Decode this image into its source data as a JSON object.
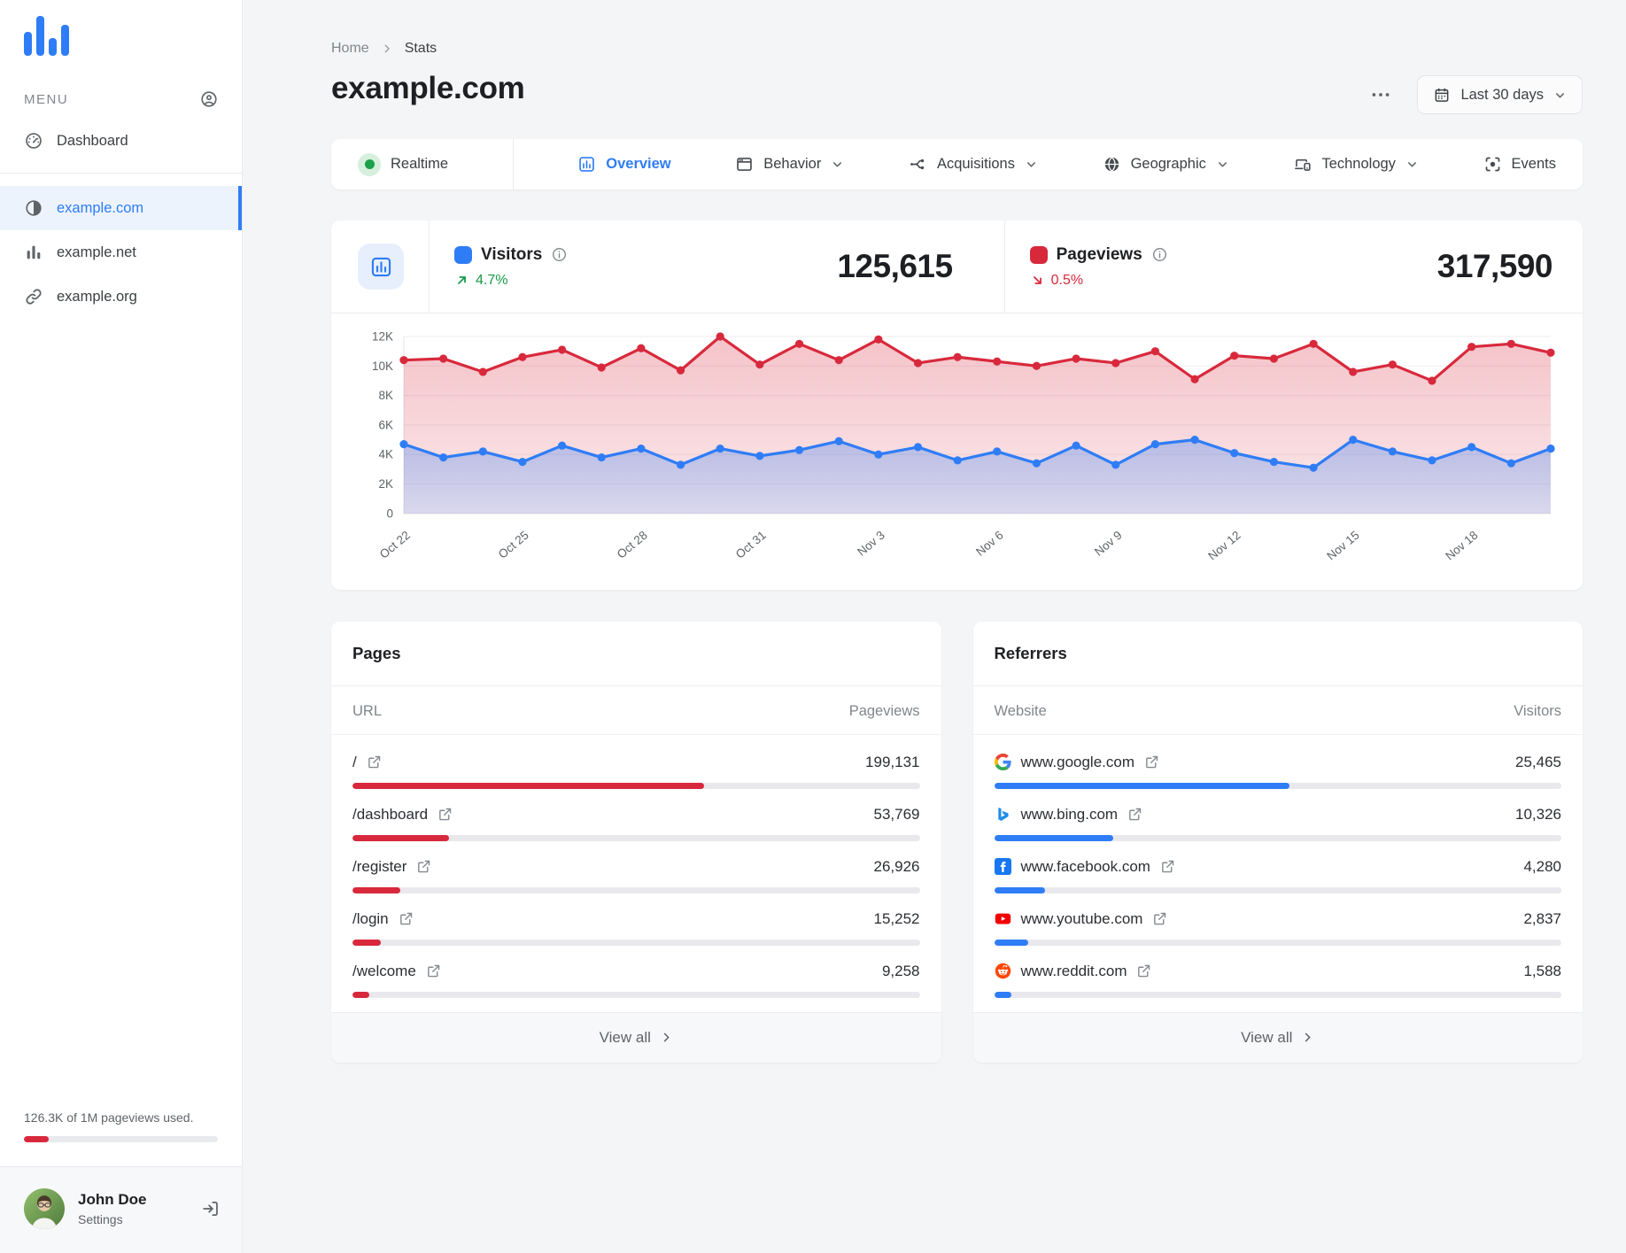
{
  "sidebar": {
    "menu_label": "MENU",
    "dashboard_label": "Dashboard",
    "sites": [
      {
        "label": "example.com",
        "icon": "contrast",
        "active": true
      },
      {
        "label": "example.net",
        "icon": "bar-chart",
        "active": false
      },
      {
        "label": "example.org",
        "icon": "link",
        "active": false
      }
    ],
    "usage": {
      "text": "126.3K of 1M pageviews used.",
      "percent": 12.6
    },
    "user": {
      "name": "John Doe",
      "subtitle": "Settings"
    }
  },
  "header": {
    "breadcrumb": {
      "home": "Home",
      "current": "Stats"
    },
    "title": "example.com",
    "date_range_label": "Last 30 days"
  },
  "tabs": [
    {
      "label": "Realtime",
      "icon": "pulse",
      "active": false,
      "dropdown": false
    },
    {
      "label": "Overview",
      "icon": "overview",
      "active": true,
      "dropdown": false
    },
    {
      "label": "Behavior",
      "icon": "behavior",
      "active": false,
      "dropdown": true
    },
    {
      "label": "Acquisitions",
      "icon": "acquisitions",
      "active": false,
      "dropdown": true
    },
    {
      "label": "Geographic",
      "icon": "geographic",
      "active": false,
      "dropdown": true
    },
    {
      "label": "Technology",
      "icon": "technology",
      "active": false,
      "dropdown": true
    },
    {
      "label": "Events",
      "icon": "events",
      "active": false,
      "dropdown": false
    }
  ],
  "stats": {
    "visitors": {
      "label": "Visitors",
      "value": "125,615",
      "change": "4.7%",
      "direction": "up",
      "color": "#2f7df6"
    },
    "pageviews": {
      "label": "Pageviews",
      "value": "317,590",
      "change": "0.5%",
      "direction": "down",
      "color": "#d8293c"
    }
  },
  "chart_data": {
    "type": "line",
    "x_tick_labels": [
      "Oct 22",
      "Oct 25",
      "Oct 28",
      "Oct 31",
      "Nov 3",
      "Nov 6",
      "Nov 9",
      "Nov 12",
      "Nov 15",
      "Nov 18"
    ],
    "x_tick_every": 3,
    "ylim": [
      0,
      12000
    ],
    "y_tick_labels": [
      "0",
      "2K",
      "4K",
      "6K",
      "8K",
      "10K",
      "12K"
    ],
    "grid": true,
    "legend_position": "header",
    "series": [
      {
        "name": "Pageviews",
        "color": "#d8293c",
        "values": [
          10400,
          10500,
          9600,
          10600,
          11100,
          9900,
          11200,
          9700,
          12000,
          10100,
          11500,
          10400,
          11800,
          10200,
          10600,
          10300,
          10000,
          10500,
          10200,
          11000,
          9100,
          10700,
          10500,
          11500,
          9600,
          10100,
          9000,
          11300,
          11500,
          10900
        ]
      },
      {
        "name": "Visitors",
        "color": "#2f7df6",
        "values": [
          4700,
          3800,
          4200,
          3500,
          4600,
          3800,
          4400,
          3300,
          4400,
          3900,
          4300,
          4900,
          4000,
          4500,
          3600,
          4200,
          3400,
          4600,
          3300,
          4700,
          5000,
          4100,
          3500,
          3100,
          5000,
          4200,
          3600,
          4500,
          3400,
          4400
        ]
      }
    ]
  },
  "pages": {
    "title": "Pages",
    "columns": [
      "URL",
      "Pageviews"
    ],
    "bar_color": "#d8293c",
    "rows": [
      {
        "label": "/",
        "value": "199,131",
        "percent": 62
      },
      {
        "label": "/dashboard",
        "value": "53,769",
        "percent": 17
      },
      {
        "label": "/register",
        "value": "26,926",
        "percent": 8.5
      },
      {
        "label": "/login",
        "value": "15,252",
        "percent": 5
      },
      {
        "label": "/welcome",
        "value": "9,258",
        "percent": 3
      }
    ],
    "view_all_label": "View all"
  },
  "referrers": {
    "title": "Referrers",
    "columns": [
      "Website",
      "Visitors"
    ],
    "bar_color": "#2f7df6",
    "rows": [
      {
        "label": "www.google.com",
        "value": "25,465",
        "percent": 52,
        "icon": "google"
      },
      {
        "label": "www.bing.com",
        "value": "10,326",
        "percent": 21,
        "icon": "bing"
      },
      {
        "label": "www.facebook.com",
        "value": "4,280",
        "percent": 9,
        "icon": "facebook"
      },
      {
        "label": "www.youtube.com",
        "value": "2,837",
        "percent": 6,
        "icon": "youtube"
      },
      {
        "label": "www.reddit.com",
        "value": "1,588",
        "percent": 3,
        "icon": "reddit"
      }
    ],
    "view_all_label": "View all"
  }
}
